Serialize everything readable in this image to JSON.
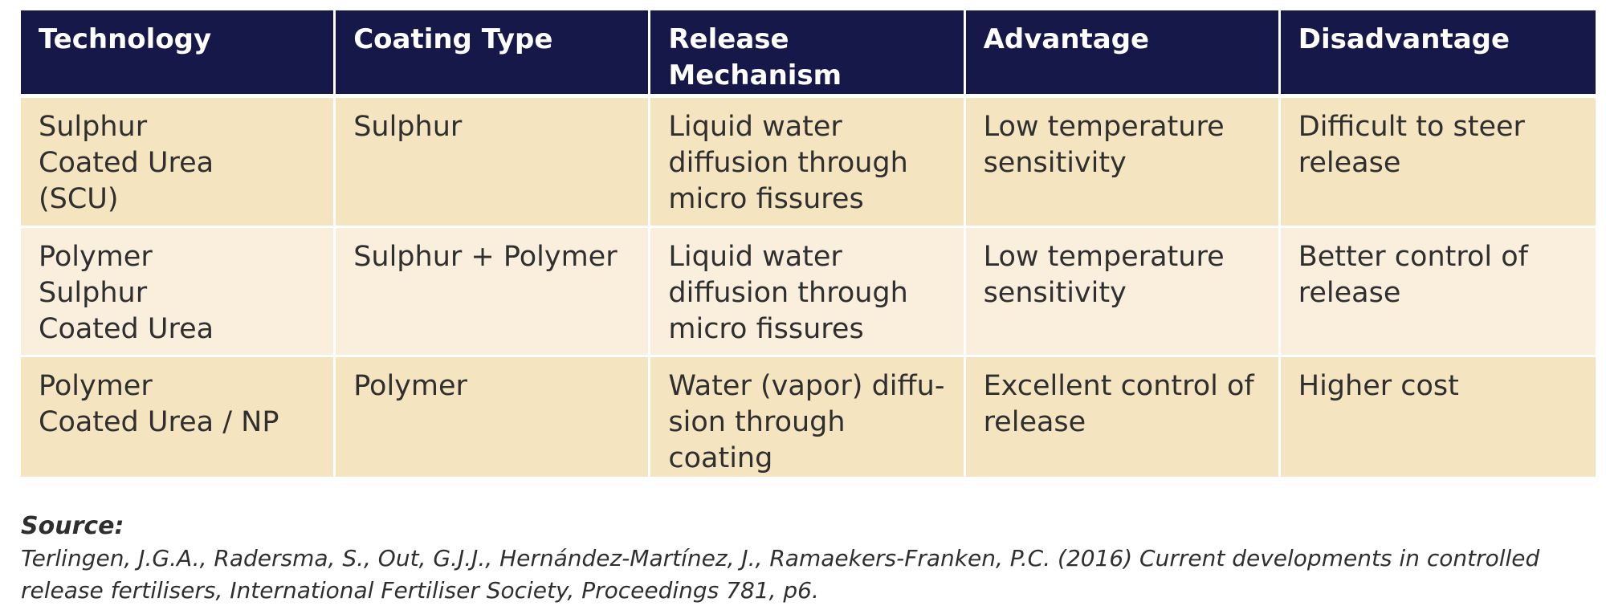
{
  "table": {
    "headers": [
      "Technology",
      "Coating Type",
      "Release\nMechanism",
      "Advantage",
      "Disadvantage"
    ],
    "rows": [
      [
        "Sulphur\nCoated Urea\n(SCU)",
        "Sulphur",
        "Liquid water\ndiffusion through\nmicro fissures",
        "Low temperature\nsensitivity",
        "Difficult to steer\nrelease"
      ],
      [
        "Polymer\nSulphur\nCoated Urea",
        "Sulphur + Polymer",
        "Liquid water\ndiffusion through\nmicro fissures",
        "Low temperature\nsensitivity",
        "Better control of\nrelease"
      ],
      [
        "Polymer\nCoated Urea / NP",
        "Polymer",
        "Water (vapor) diffu-\nsion through coating",
        "Excellent control of\nrelease",
        "Higher cost"
      ]
    ]
  },
  "source": {
    "label": "Source:",
    "text": "Terlingen, J.G.A., Radersma, S., Out, G.J.J., Hernández-Martínez, J., Ramaekers-Franken, P.C. (2016) Current developments in controlled\nrelease fertilisers, International Fertiliser Society, Proceedings 781, p6."
  },
  "colors": {
    "header_bg": "#17184a",
    "row_odd_bg": "#f4e4bf",
    "row_even_bg": "#faefdd",
    "text": "#2f2f2f"
  }
}
